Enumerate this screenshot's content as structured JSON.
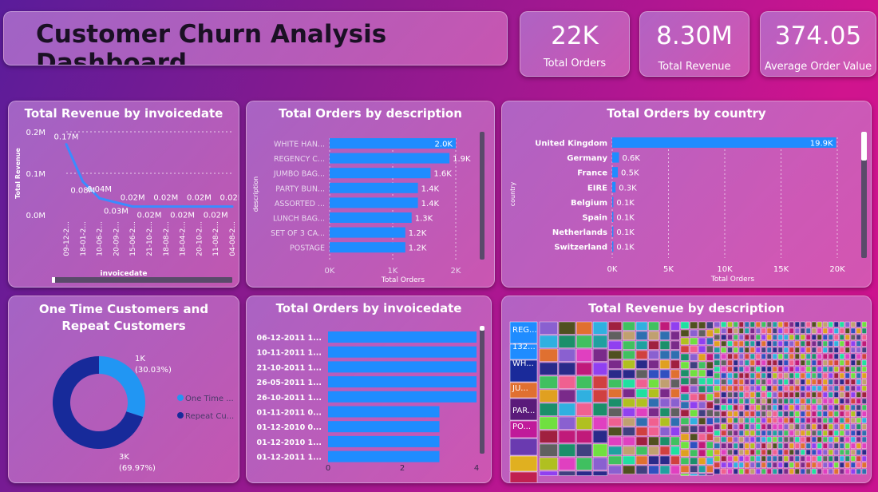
{
  "header": {
    "title": "Customer Churn Analysis Dashboard"
  },
  "kpis": [
    {
      "value": "22K",
      "label": "Total Orders"
    },
    {
      "value": "8.30M",
      "label": "Total Revenue"
    },
    {
      "value": "374.05",
      "label": "Average Order Value"
    }
  ],
  "colors": {
    "bar": "#1f8cff",
    "donut_one_time": "#2196f3",
    "donut_repeat": "#172a9a",
    "line": "#3a8cff"
  },
  "chart_data": [
    {
      "id": "revenue_by_date",
      "type": "line",
      "title": "Total Revenue by invoicedate",
      "xlabel": "invoicedate",
      "ylabel": "Total Revenue",
      "categories": [
        "09-12-2...",
        "18-01-2...",
        "10-06-2...",
        "20-09-2...",
        "15-06-2...",
        "21-10-2...",
        "18-08-2...",
        "18-04-2...",
        "20-10-2...",
        "11-08-2...",
        "04-08-2..."
      ],
      "values": [
        0.17,
        0.08,
        0.04,
        0.03,
        0.02,
        0.02,
        0.02,
        0.02,
        0.02,
        0.02,
        0.02
      ],
      "data_labels": [
        "0.17M",
        "0.08M",
        "0.04M",
        "0.03M",
        "0.02M",
        "0.02M",
        "0.02M",
        "0.02M",
        "0.02M",
        "0.02M",
        "0.02M"
      ],
      "yticks": [
        "0.0M",
        "0.1M",
        "0.2M"
      ],
      "ylim": [
        0,
        0.2
      ]
    },
    {
      "id": "orders_by_description",
      "type": "bar",
      "title": "Total Orders by description",
      "xlabel": "Total Orders",
      "ylabel": "description",
      "categories": [
        "WHITE HAN...",
        "REGENCY C...",
        "JUMBO BAG...",
        "PARTY BUN...",
        "ASSORTED ...",
        "LUNCH BAG...",
        "SET OF 3 CA...",
        "POSTAGE"
      ],
      "values": [
        2.0,
        1.9,
        1.6,
        1.4,
        1.4,
        1.3,
        1.2,
        1.2
      ],
      "data_labels": [
        "2.0K",
        "1.9K",
        "1.6K",
        "1.4K",
        "1.4K",
        "1.3K",
        "1.2K",
        "1.2K"
      ],
      "xticks": [
        "0K",
        "1K",
        "2K"
      ],
      "xlim": [
        0,
        2.0
      ]
    },
    {
      "id": "orders_by_country",
      "type": "bar",
      "title": "Total Orders by country",
      "xlabel": "Total Orders",
      "ylabel": "country",
      "categories": [
        "United Kingdom",
        "Germany",
        "France",
        "EIRE",
        "Belgium",
        "Spain",
        "Netherlands",
        "Switzerland"
      ],
      "values": [
        19.9,
        0.6,
        0.5,
        0.3,
        0.1,
        0.1,
        0.1,
        0.1
      ],
      "data_labels": [
        "19.9K",
        "0.6K",
        "0.5K",
        "0.3K",
        "0.1K",
        "0.1K",
        "0.1K",
        "0.1K"
      ],
      "xticks": [
        "0K",
        "5K",
        "10K",
        "15K",
        "20K"
      ],
      "xlim": [
        0,
        20
      ]
    },
    {
      "id": "customers_pie",
      "type": "pie",
      "title": "One Time Customers and Repeat Customers",
      "categories": [
        "One Time ...",
        "Repeat Cu..."
      ],
      "values": [
        30.03,
        69.97
      ],
      "data_labels": [
        "1K",
        "(30.03%)",
        "3K",
        "(69.97%)"
      ]
    },
    {
      "id": "orders_by_date",
      "type": "bar",
      "title": "Total Orders by invoicedate",
      "categories": [
        "06-12-2011 1...",
        "10-11-2011 1...",
        "21-10-2011 1...",
        "26-05-2011 1...",
        "26-10-2011 1...",
        "01-11-2011 0...",
        "01-12-2010 0...",
        "01-12-2010 1...",
        "01-12-2011 1..."
      ],
      "values": [
        4,
        4,
        4,
        4,
        4,
        3,
        3,
        3,
        3
      ],
      "xticks": [
        "0",
        "2",
        "4"
      ],
      "xlim": [
        0,
        4
      ]
    },
    {
      "id": "revenue_treemap",
      "type": "heatmap",
      "title": "Total Revenue by description",
      "labels": [
        "REG...",
        "132...",
        "WH...",
        "JU...",
        "PAR...",
        "PO..."
      ]
    }
  ]
}
